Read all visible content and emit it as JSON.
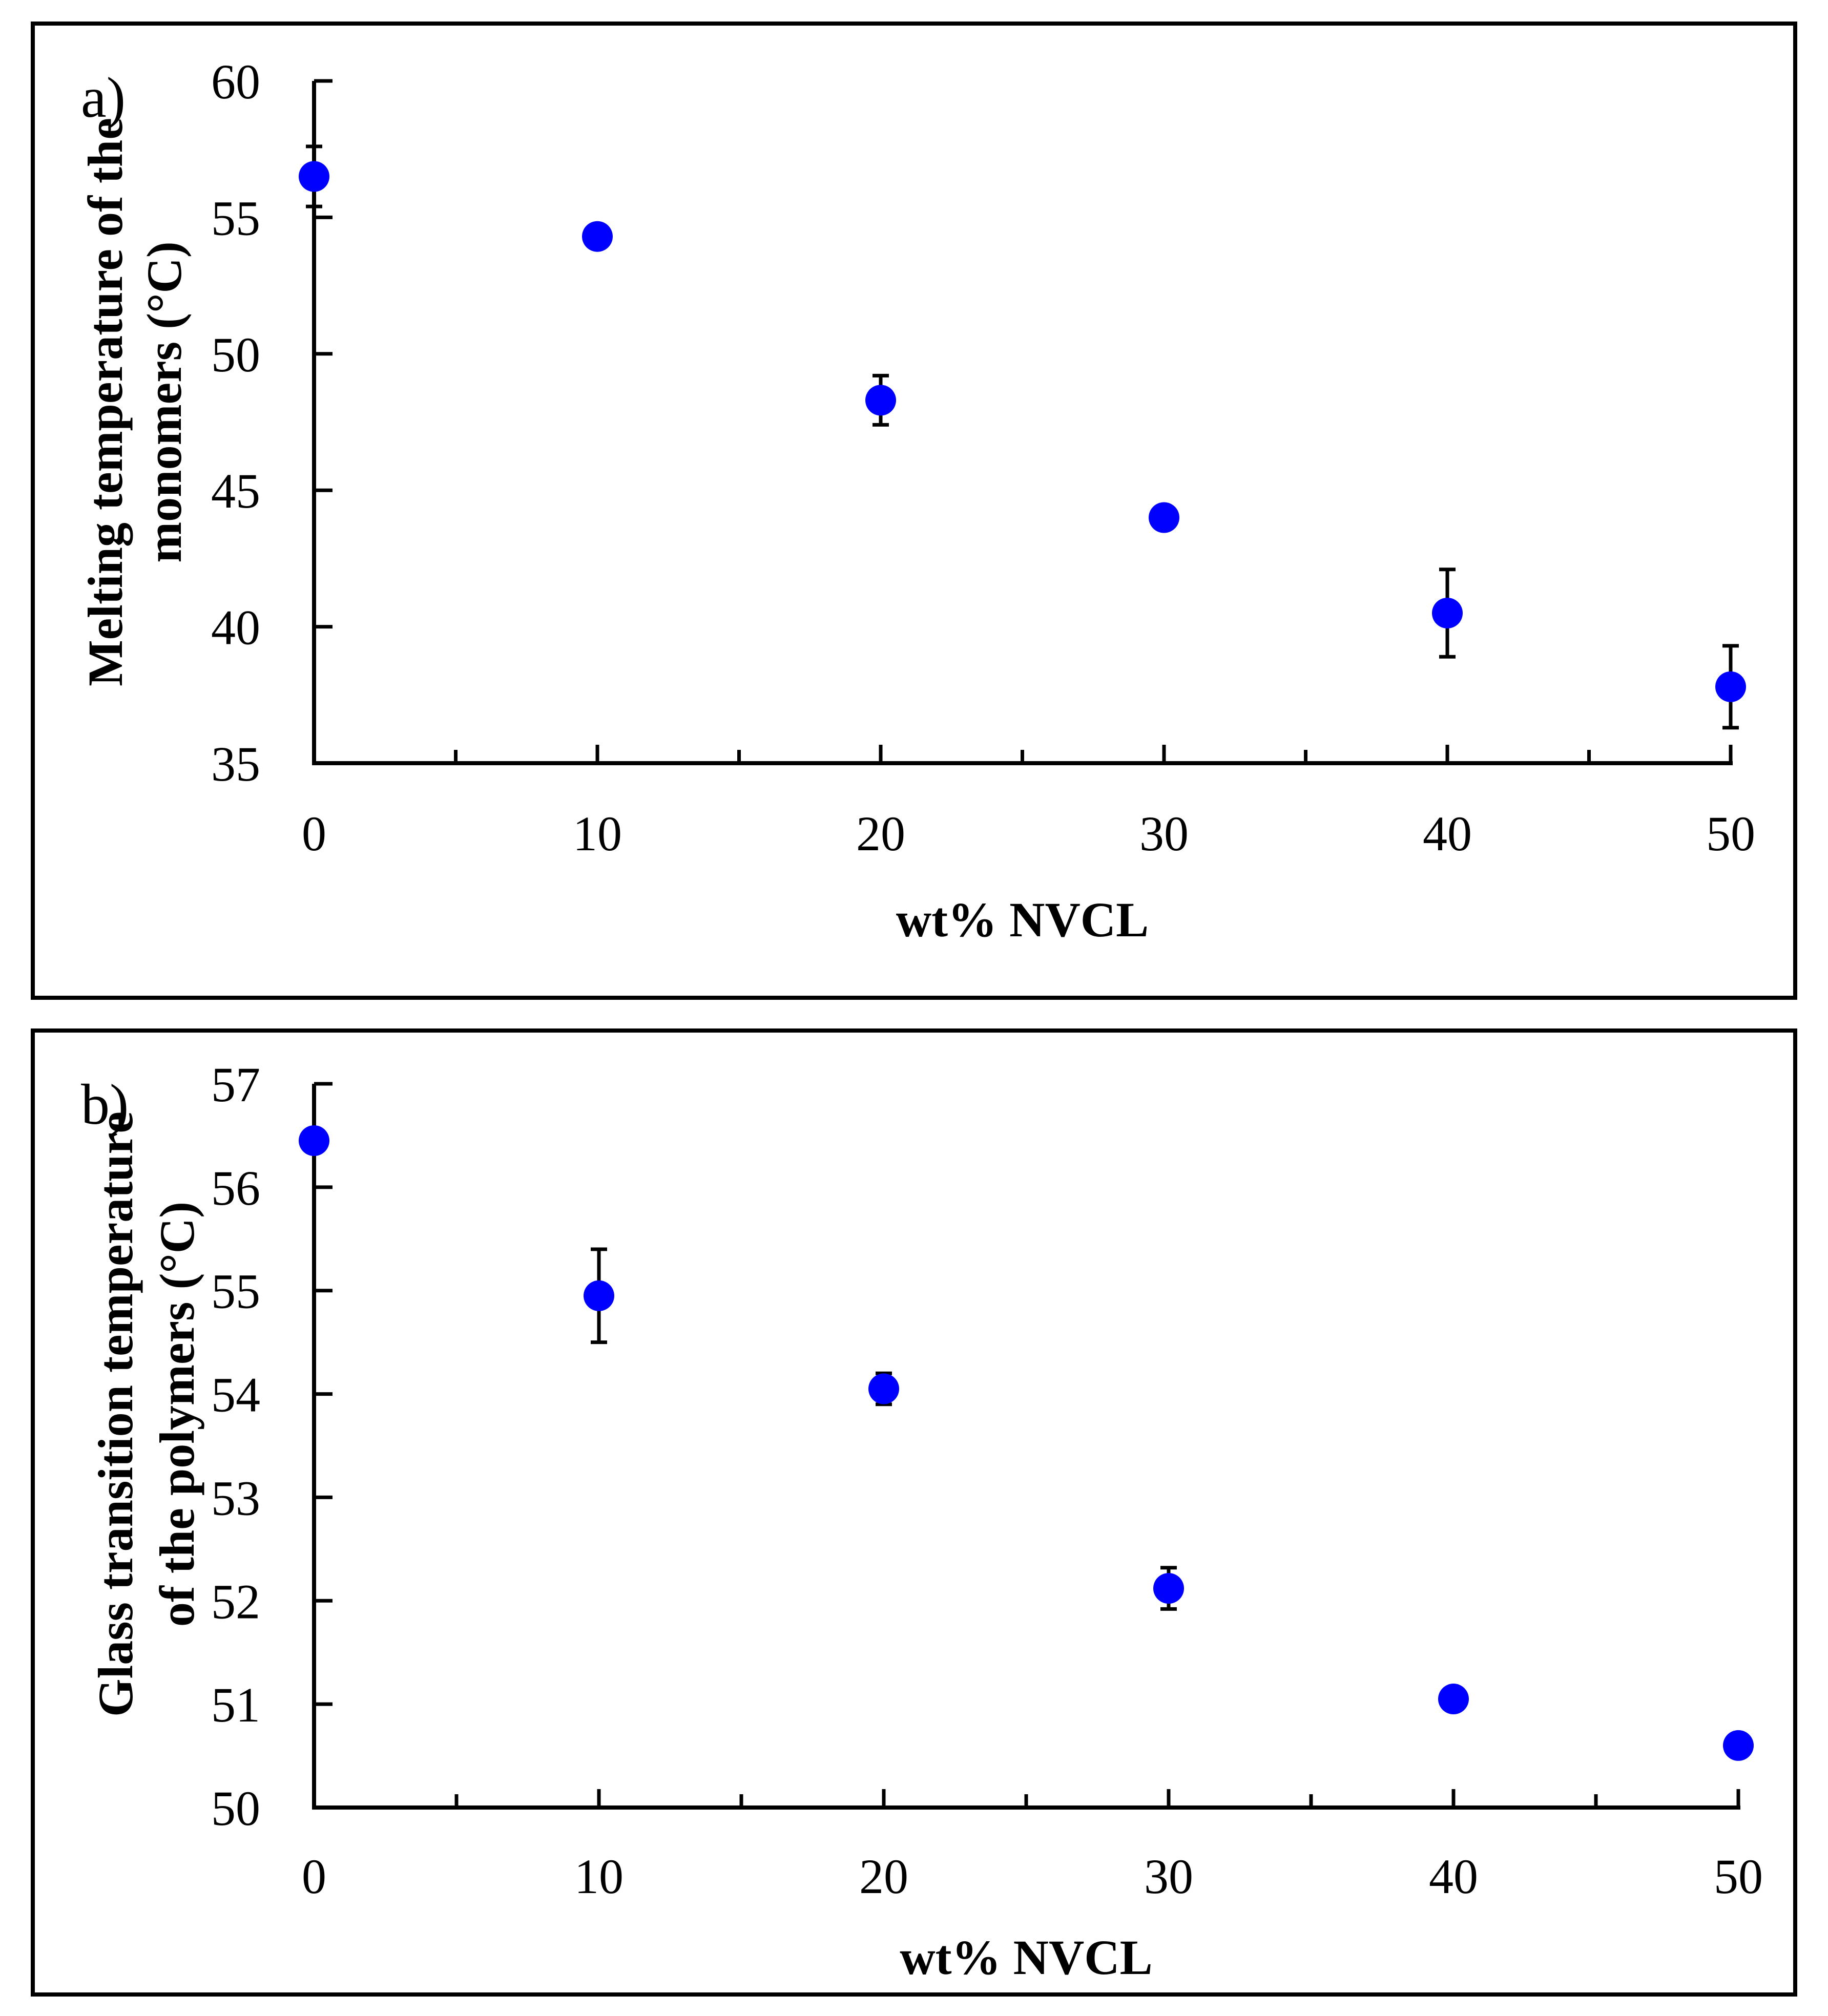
{
  "chart_data": [
    {
      "type": "scatter",
      "panel_label": "a)",
      "xlabel": "wt% NVCL",
      "ylabel_lines": [
        "Melting temperature of the",
        "monomers (°C)"
      ],
      "xlim": [
        0,
        50
      ],
      "ylim": [
        35,
        60
      ],
      "x_major_ticks": [
        0,
        10,
        20,
        30,
        40,
        50
      ],
      "x_minor_ticks": [
        5,
        15,
        25,
        35,
        45
      ],
      "y_ticks": [
        35,
        40,
        45,
        50,
        55,
        60
      ],
      "marker_color": "#0000ff",
      "series": [
        {
          "name": "Melting temperature",
          "x": [
            0,
            10,
            20,
            30,
            40,
            50
          ],
          "y": [
            56.5,
            54.3,
            48.3,
            44.0,
            40.5,
            37.8
          ],
          "err": [
            1.1,
            0.4,
            0.9,
            0.3,
            1.6,
            1.5
          ]
        }
      ]
    },
    {
      "type": "scatter",
      "panel_label": "b)",
      "xlabel": "wt% NVCL",
      "ylabel_lines": [
        "Glass transition temperature",
        "of the polymers (°C)"
      ],
      "xlim": [
        0,
        50
      ],
      "ylim": [
        50,
        57
      ],
      "x_major_ticks": [
        0,
        10,
        20,
        30,
        40,
        50
      ],
      "x_minor_ticks": [
        5,
        15,
        25,
        35,
        45
      ],
      "y_ticks": [
        50,
        51,
        52,
        53,
        54,
        55,
        56,
        57
      ],
      "marker_color": "#0000ff",
      "series": [
        {
          "name": "Glass transition temperature",
          "x": [
            0,
            10,
            20,
            30,
            40,
            50
          ],
          "y": [
            56.45,
            54.95,
            54.05,
            52.12,
            51.05,
            50.6
          ],
          "err": [
            0.05,
            0.45,
            0.15,
            0.2,
            0.05,
            0.05
          ]
        }
      ]
    }
  ]
}
